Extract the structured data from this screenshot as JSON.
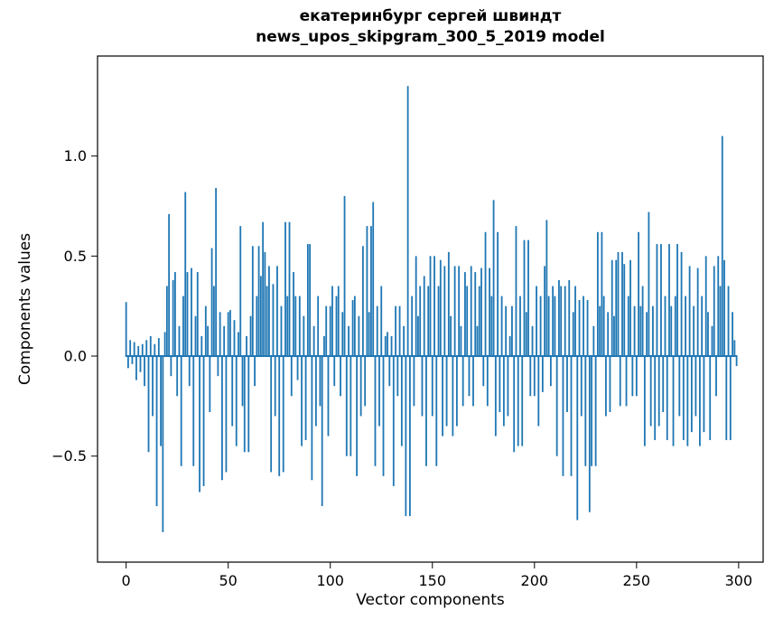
{
  "chart_data": {
    "type": "bar",
    "title_line1": "екатеринбург сергей швиндт",
    "title_line2": "news_upos_skipgram_300_5_2019 model",
    "xlabel": "Vector components",
    "ylabel": "Components values",
    "bar_color": "#1f77b4",
    "grid": false,
    "legend": null,
    "xlim": [
      -14,
      312
    ],
    "ylim": [
      -1.03,
      1.5
    ],
    "x_ticks": [
      0,
      50,
      100,
      150,
      200,
      250,
      300
    ],
    "x_tick_labels": [
      "0",
      "50",
      "100",
      "150",
      "200",
      "250",
      "300"
    ],
    "y_ticks": [
      -0.5,
      0.0,
      0.5,
      1.0
    ],
    "y_tick_labels": [
      "−0.5",
      "0.0",
      "0.5",
      "1.0"
    ],
    "values": [
      0.27,
      -0.06,
      0.08,
      -0.04,
      0.07,
      -0.12,
      0.05,
      -0.08,
      0.06,
      -0.15,
      0.08,
      -0.48,
      0.1,
      -0.3,
      0.06,
      -0.75,
      0.09,
      -0.45,
      -0.88,
      0.12,
      0.35,
      0.71,
      -0.1,
      0.38,
      0.42,
      -0.2,
      0.15,
      -0.55,
      0.3,
      0.82,
      0.42,
      -0.15,
      0.44,
      -0.55,
      0.2,
      0.42,
      -0.68,
      0.1,
      -0.65,
      0.25,
      0.15,
      -0.28,
      0.54,
      0.35,
      0.84,
      -0.1,
      0.22,
      -0.62,
      0.15,
      -0.58,
      0.22,
      0.23,
      -0.35,
      0.18,
      -0.45,
      0.12,
      0.65,
      -0.25,
      -0.48,
      0.1,
      -0.48,
      0.2,
      0.55,
      -0.15,
      0.3,
      0.55,
      0.4,
      0.67,
      0.52,
      0.35,
      0.45,
      -0.58,
      0.36,
      -0.3,
      0.45,
      -0.6,
      0.25,
      -0.58,
      0.67,
      0.3,
      0.67,
      -0.2,
      0.42,
      0.3,
      -0.12,
      0.3,
      -0.45,
      0.2,
      -0.42,
      0.56,
      0.56,
      -0.62,
      0.15,
      -0.35,
      0.3,
      -0.25,
      -0.75,
      0.1,
      0.25,
      -0.4,
      0.25,
      0.35,
      -0.15,
      0.3,
      0.35,
      -0.2,
      0.22,
      0.8,
      -0.5,
      0.15,
      -0.5,
      0.28,
      0.3,
      -0.6,
      0.2,
      -0.3,
      0.55,
      -0.25,
      0.65,
      0.22,
      0.65,
      0.77,
      -0.55,
      0.25,
      -0.35,
      0.35,
      -0.6,
      0.1,
      0.12,
      -0.15,
      0.1,
      -0.65,
      0.25,
      -0.2,
      0.25,
      -0.45,
      0.15,
      -0.8,
      1.35,
      -0.8,
      0.3,
      -0.25,
      0.5,
      0.2,
      0.35,
      -0.3,
      0.4,
      -0.55,
      0.35,
      0.5,
      -0.3,
      0.5,
      -0.55,
      0.35,
      0.48,
      -0.4,
      0.45,
      -0.35,
      0.52,
      0.2,
      -0.4,
      0.45,
      -0.35,
      0.45,
      0.15,
      -0.25,
      0.42,
      0.35,
      -0.2,
      0.45,
      -0.25,
      0.42,
      0.15,
      0.35,
      0.44,
      -0.15,
      0.62,
      -0.25,
      0.44,
      0.3,
      0.78,
      -0.4,
      0.62,
      -0.28,
      0.3,
      -0.35,
      0.25,
      -0.3,
      0.1,
      0.25,
      -0.48,
      0.65,
      -0.45,
      0.3,
      -0.45,
      0.58,
      0.22,
      0.58,
      -0.2,
      0.15,
      -0.2,
      0.35,
      -0.35,
      0.3,
      -0.18,
      0.45,
      0.68,
      0.3,
      -0.15,
      0.35,
      0.3,
      -0.5,
      0.38,
      0.35,
      -0.6,
      0.35,
      -0.28,
      0.38,
      -0.6,
      0.22,
      0.35,
      -0.82,
      0.28,
      -0.3,
      0.3,
      -0.55,
      0.28,
      -0.78,
      -0.55,
      0.15,
      -0.55,
      0.62,
      0.25,
      0.62,
      0.3,
      -0.3,
      0.22,
      -0.28,
      0.48,
      0.2,
      0.48,
      0.52,
      -0.25,
      0.52,
      0.46,
      -0.25,
      0.3,
      0.48,
      -0.2,
      0.25,
      -0.2,
      0.62,
      0.25,
      0.35,
      -0.45,
      0.22,
      0.72,
      -0.35,
      0.25,
      -0.42,
      0.56,
      -0.35,
      0.56,
      -0.28,
      0.3,
      -0.42,
      0.56,
      0.25,
      -0.45,
      0.3,
      0.56,
      -0.3,
      0.52,
      -0.42,
      0.3,
      -0.45,
      0.45,
      -0.38,
      0.25,
      -0.3,
      0.44,
      -0.45,
      0.3,
      -0.38,
      0.5,
      0.22,
      -0.42,
      0.15,
      0.45,
      -0.2,
      0.5,
      0.35,
      1.1,
      0.48,
      -0.42,
      0.35,
      -0.42,
      0.22,
      0.08,
      -0.05
    ]
  }
}
